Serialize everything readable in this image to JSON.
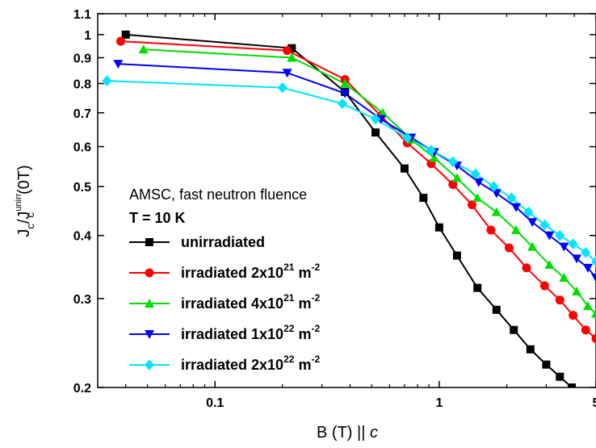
{
  "chart_data": {
    "type": "line",
    "x_scale": "log",
    "y_scale": "log",
    "xlim": [
      0.03,
      5
    ],
    "ylim": [
      0.2,
      1.1
    ],
    "x_ticks": [
      {
        "value": 0.1,
        "label": "0.1"
      },
      {
        "value": 1,
        "label": "1"
      },
      {
        "value": 5,
        "label": "5"
      }
    ],
    "y_ticks": [
      {
        "value": 0.2,
        "label": "0.2"
      },
      {
        "value": 0.3,
        "label": "0.3"
      },
      {
        "value": 0.4,
        "label": "0.4"
      },
      {
        "value": 0.5,
        "label": "0.5"
      },
      {
        "value": 0.6,
        "label": "0.6"
      },
      {
        "value": 0.7,
        "label": "0.7"
      },
      {
        "value": 0.8,
        "label": "0.8"
      },
      {
        "value": 0.9,
        "label": "0.9"
      },
      {
        "value": 1,
        "label": "1"
      },
      {
        "value": 1.1,
        "label": "1.1"
      }
    ],
    "xlabel": "B (T) || c",
    "ylabel": "Jc/Jc^unirr(0T)",
    "grid": false,
    "legend_position": "bottom-left",
    "legend_header": [
      "AMSC, fast neutron fluence",
      "T = 10 K"
    ],
    "series": [
      {
        "name": "unirradiated",
        "color": "#000000",
        "marker": "square",
        "x": [
          0.04,
          0.22,
          0.38,
          0.52,
          0.7,
          0.85,
          1.0,
          1.2,
          1.48,
          1.8,
          2.15,
          2.55,
          3.0,
          3.45,
          3.9
        ],
        "y": [
          1.0,
          0.94,
          0.77,
          0.64,
          0.543,
          0.475,
          0.415,
          0.365,
          0.315,
          0.285,
          0.26,
          0.238,
          0.222,
          0.21,
          0.2
        ]
      },
      {
        "name": "irradiated 2x10^21 m^-2",
        "color": "#ff0000",
        "marker": "circle",
        "x": [
          0.038,
          0.21,
          0.38,
          0.55,
          0.72,
          0.92,
          1.15,
          1.4,
          1.7,
          2.05,
          2.45,
          2.95,
          3.45,
          3.95,
          4.5,
          5.0
        ],
        "y": [
          0.97,
          0.93,
          0.815,
          0.69,
          0.61,
          0.555,
          0.505,
          0.46,
          0.41,
          0.378,
          0.345,
          0.318,
          0.298,
          0.278,
          0.26,
          0.25
        ]
      },
      {
        "name": "irradiated 4x10^21 m^-2",
        "color": "#00dd00",
        "marker": "triangle-up",
        "x": [
          0.048,
          0.22,
          0.38,
          0.56,
          0.75,
          0.95,
          1.2,
          1.48,
          1.8,
          2.2,
          2.6,
          3.1,
          3.6,
          4.1,
          4.6,
          5.0
        ],
        "y": [
          0.935,
          0.9,
          0.8,
          0.7,
          0.62,
          0.57,
          0.52,
          0.475,
          0.445,
          0.41,
          0.38,
          0.35,
          0.33,
          0.31,
          0.29,
          0.28
        ]
      },
      {
        "name": "irradiated 1x10^22 m^-2",
        "color": "#0000ff",
        "marker": "triangle-down",
        "x": [
          0.037,
          0.21,
          0.38,
          0.55,
          0.75,
          0.95,
          1.2,
          1.5,
          1.8,
          2.2,
          2.6,
          3.1,
          3.6,
          4.1,
          4.6,
          5.0
        ],
        "y": [
          0.875,
          0.84,
          0.765,
          0.68,
          0.625,
          0.585,
          0.55,
          0.51,
          0.485,
          0.455,
          0.425,
          0.4,
          0.38,
          0.36,
          0.345,
          0.33
        ]
      },
      {
        "name": "irradiated 2x10^22 m^-2",
        "color": "#00e5ff",
        "marker": "diamond",
        "x": [
          0.033,
          0.2,
          0.37,
          0.52,
          0.72,
          0.92,
          1.15,
          1.45,
          1.75,
          2.1,
          2.5,
          2.95,
          3.45,
          3.95,
          4.5,
          5.0
        ],
        "y": [
          0.81,
          0.785,
          0.73,
          0.68,
          0.625,
          0.59,
          0.56,
          0.53,
          0.5,
          0.475,
          0.445,
          0.42,
          0.4,
          0.385,
          0.37,
          0.355
        ]
      }
    ],
    "legend_labels": [
      {
        "base": "unirradiated"
      },
      {
        "base": "irradiated 2x10",
        "sup": "21",
        "unit": " m",
        "unit_sup": "-2"
      },
      {
        "base": "irradiated 4x10",
        "sup": "21",
        "unit": " m",
        "unit_sup": "-2"
      },
      {
        "base": "irradiated 1x10",
        "sup": "22",
        "unit": " m",
        "unit_sup": "-2"
      },
      {
        "base": "irradiated 2x10",
        "sup": "22",
        "unit": " m",
        "unit_sup": "-2"
      }
    ],
    "axis_text": {
      "x_main": "B (T) || ",
      "x_italic": "c",
      "y_J": "J",
      "y_c_sub": "c",
      "y_slash": "/J",
      "y_unirr_sup": "unirr",
      "y_c_sub2": "c",
      "y_tail": "(0T)"
    }
  }
}
